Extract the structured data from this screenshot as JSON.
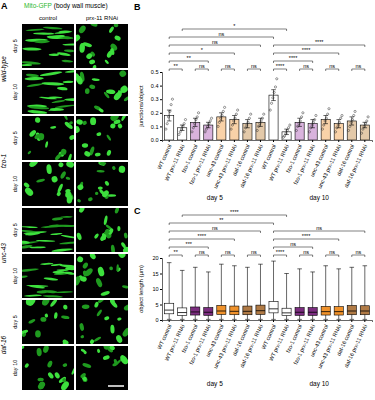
{
  "panel_a": {
    "panel_label": "A",
    "title": "Mito-GFP",
    "subtitle": "(body wall muscle)",
    "columns": [
      "control",
      "prx-11 RNAi"
    ],
    "rows": [
      {
        "label": "wild-type",
        "days": [
          "day 5",
          "day 10"
        ]
      },
      {
        "label": "fzo-1",
        "days": [
          "day 5",
          "day 10"
        ]
      },
      {
        "label": "unc-43",
        "days": [
          "day 5",
          "day 10"
        ]
      },
      {
        "label": "daf-16",
        "days": [
          "day 5",
          "day 10"
        ]
      }
    ]
  },
  "chart_data": [
    {
      "type": "bar",
      "panel_label": "B",
      "y_label": "junctions/object",
      "categories": [
        "WT control",
        "WT prx-11 RNAi",
        "fzo-1 control",
        "fzo-1 prx-11 RNAi",
        "unc-43 control",
        "unc-43 prx-11 RNAi",
        "daf-16 control",
        "daf-16 prx-11 RNAi",
        "WT control",
        "WT prx-11 RNAi",
        "fzo-1 control",
        "fzo-1 prx-11 RNAi",
        "unc-43 control",
        "unc-43 prx-11 RNAi",
        "daf-16 control",
        "daf-16 prx-11 RNAi"
      ],
      "values": [
        0.18,
        0.09,
        0.13,
        0.11,
        0.17,
        0.15,
        0.12,
        0.13,
        0.33,
        0.06,
        0.13,
        0.12,
        0.15,
        0.12,
        0.14,
        0.11
      ],
      "errors": [
        0.04,
        0.02,
        0.03,
        0.02,
        0.03,
        0.03,
        0.03,
        0.03,
        0.04,
        0.02,
        0.03,
        0.03,
        0.03,
        0.03,
        0.03,
        0.02
      ],
      "points": [
        [
          0.08,
          0.12,
          0.17,
          0.21,
          0.26,
          0.3
        ],
        [
          0.04,
          0.06,
          0.08,
          0.1,
          0.12,
          0.15
        ],
        [
          0.06,
          0.09,
          0.12,
          0.15,
          0.17,
          0.2
        ],
        [
          0.06,
          0.08,
          0.1,
          0.12,
          0.14,
          0.16
        ],
        [
          0.1,
          0.13,
          0.16,
          0.18,
          0.21,
          0.24
        ],
        [
          0.08,
          0.11,
          0.14,
          0.16,
          0.19,
          0.22
        ],
        [
          0.06,
          0.09,
          0.11,
          0.13,
          0.16,
          0.19
        ],
        [
          0.07,
          0.1,
          0.12,
          0.14,
          0.16,
          0.19
        ],
        [
          0.22,
          0.27,
          0.31,
          0.35,
          0.39,
          0.45
        ],
        [
          0.02,
          0.03,
          0.05,
          0.07,
          0.09,
          0.11
        ],
        [
          0.07,
          0.1,
          0.12,
          0.14,
          0.17,
          0.2
        ],
        [
          0.06,
          0.09,
          0.11,
          0.13,
          0.15,
          0.18
        ],
        [
          0.08,
          0.11,
          0.14,
          0.16,
          0.19,
          0.23
        ],
        [
          0.06,
          0.09,
          0.11,
          0.13,
          0.16,
          0.18
        ],
        [
          0.07,
          0.1,
          0.13,
          0.15,
          0.18,
          0.21
        ],
        [
          0.05,
          0.08,
          0.1,
          0.12,
          0.14,
          0.17
        ]
      ],
      "colors": [
        "#ffffff",
        "#ffffff",
        "#d9b3dd",
        "#d9b3dd",
        "#f9d2a8",
        "#f9d2a8",
        "#e3c9a9",
        "#e3c9a9",
        "#ffffff",
        "#ffffff",
        "#d9b3dd",
        "#d9b3dd",
        "#f9d2a8",
        "#f9d2a8",
        "#e3c9a9",
        "#e3c9a9"
      ],
      "ylim": [
        0,
        0.5
      ],
      "yticks": [
        {
          "value": 0,
          "label": "0.0"
        },
        {
          "value": 0.1,
          "label": "0.1"
        },
        {
          "value": 0.2,
          "label": "0.2"
        },
        {
          "value": 0.3,
          "label": "0.3"
        },
        {
          "value": 0.4,
          "label": "0.4"
        },
        {
          "value": 0.5,
          "label": "0.5"
        }
      ],
      "groups": [
        {
          "label": "day 5",
          "range": [
            0,
            7
          ]
        },
        {
          "label": "day 10",
          "range": [
            8,
            15
          ]
        }
      ],
      "comparisons": [
        {
          "pair": [
            0,
            1
          ],
          "label": "**"
        },
        {
          "pair": [
            2,
            3
          ],
          "label": "ns"
        },
        {
          "pair": [
            4,
            5
          ],
          "label": "ns"
        },
        {
          "pair": [
            6,
            7
          ],
          "label": "ns"
        },
        {
          "pair": [
            8,
            9
          ],
          "label": "****"
        },
        {
          "pair": [
            10,
            11
          ],
          "label": "ns"
        },
        {
          "pair": [
            12,
            13
          ],
          "label": "ns"
        },
        {
          "pair": [
            14,
            15
          ],
          "label": "ns"
        },
        {
          "pair": [
            0,
            3
          ],
          "label": "**"
        },
        {
          "pair": [
            0,
            5
          ],
          "label": "*"
        },
        {
          "pair": [
            0,
            7
          ],
          "label": "ns"
        },
        {
          "pair": [
            8,
            11
          ],
          "label": "****"
        },
        {
          "pair": [
            8,
            13
          ],
          "label": "****"
        },
        {
          "pair": [
            8,
            15
          ],
          "label": "****"
        },
        {
          "pair": [
            0,
            8
          ],
          "label": "ns"
        },
        {
          "pair": [
            1,
            9
          ],
          "label": "*"
        }
      ]
    },
    {
      "type": "box",
      "panel_label": "C",
      "y_label": "object length (µm)",
      "categories": [
        "WT control",
        "WT prx-11 RNAi",
        "fzo-1 control",
        "fzo-1 prx-11 RNAi",
        "unc-43 control",
        "unc-43 prx-11 RNAi",
        "daf-16 control",
        "daf-16 prx-11 RNAi",
        "WT control",
        "WT prx-11 RNAi",
        "fzo-1 control",
        "fzo-1 prx-11 RNAi",
        "unc-43 control",
        "unc-43 prx-11 RNAi",
        "daf-16 control",
        "daf-16 prx-11 RNAi"
      ],
      "min": [
        0.2,
        0.2,
        0.2,
        0.2,
        0.2,
        0.2,
        0.2,
        0.2,
        0.2,
        0.2,
        0.2,
        0.2,
        0.2,
        0.2,
        0.2,
        0.2
      ],
      "q1": [
        2.0,
        1.5,
        1.6,
        1.5,
        1.8,
        1.7,
        1.7,
        1.8,
        2.3,
        1.4,
        1.5,
        1.5,
        1.6,
        1.6,
        1.7,
        1.7
      ],
      "median": [
        3.2,
        2.4,
        2.6,
        2.5,
        2.9,
        2.8,
        2.8,
        3.0,
        3.6,
        2.3,
        2.5,
        2.5,
        2.7,
        2.7,
        2.9,
        2.9
      ],
      "q3": [
        5.4,
        3.9,
        4.2,
        4.0,
        4.7,
        4.5,
        4.5,
        4.8,
        6.0,
        3.8,
        4.0,
        4.0,
        4.4,
        4.3,
        4.7,
        4.6
      ],
      "max": [
        18.5,
        16.0,
        17.0,
        15.5,
        18.0,
        17.5,
        17.0,
        18.0,
        19.0,
        15.0,
        16.5,
        15.5,
        17.5,
        16.5,
        17.0,
        17.5
      ],
      "colors": [
        "#ffffff",
        "#ffffff",
        "#7b2d7f",
        "#7b2d7f",
        "#f0922b",
        "#f0922b",
        "#b07a45",
        "#b07a45",
        "#ffffff",
        "#ffffff",
        "#7b2d7f",
        "#7b2d7f",
        "#f0922b",
        "#f0922b",
        "#b07a45",
        "#b07a45"
      ],
      "ylim": [
        0,
        20
      ],
      "yticks": [
        0,
        5,
        10,
        15,
        20
      ],
      "groups": [
        {
          "label": "day 5",
          "range": [
            0,
            7
          ]
        },
        {
          "label": "day 10",
          "range": [
            8,
            15
          ]
        }
      ],
      "comparisons": [
        {
          "pair": [
            0,
            1
          ],
          "label": "**"
        },
        {
          "pair": [
            2,
            3
          ],
          "label": "ns"
        },
        {
          "pair": [
            4,
            5
          ],
          "label": "ns"
        },
        {
          "pair": [
            6,
            7
          ],
          "label": "ns"
        },
        {
          "pair": [
            8,
            9
          ],
          "label": "****"
        },
        {
          "pair": [
            10,
            11
          ],
          "label": "ns"
        },
        {
          "pair": [
            12,
            13
          ],
          "label": "ns"
        },
        {
          "pair": [
            14,
            15
          ],
          "label": "ns"
        },
        {
          "pair": [
            0,
            3
          ],
          "label": "***"
        },
        {
          "pair": [
            0,
            5
          ],
          "label": "****"
        },
        {
          "pair": [
            0,
            7
          ],
          "label": "ns"
        },
        {
          "pair": [
            8,
            11
          ],
          "label": "ns"
        },
        {
          "pair": [
            8,
            13
          ],
          "label": "****"
        },
        {
          "pair": [
            8,
            15
          ],
          "label": "ns"
        },
        {
          "pair": [
            0,
            8
          ],
          "label": "**"
        },
        {
          "pair": [
            1,
            9
          ],
          "label": "****"
        }
      ]
    }
  ]
}
